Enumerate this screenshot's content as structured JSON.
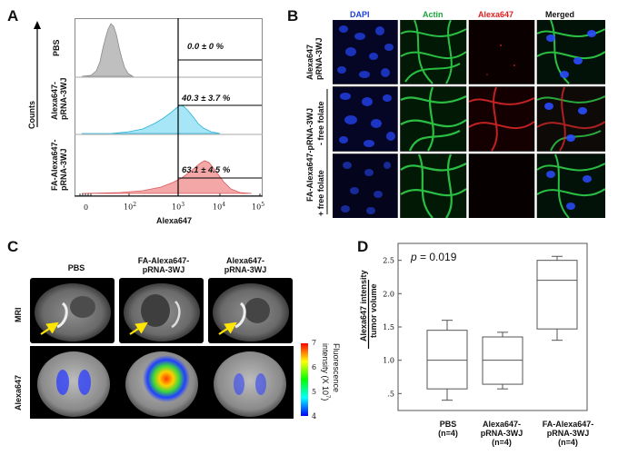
{
  "panel_letters": {
    "a": "A",
    "b": "B",
    "c": "C",
    "d": "D"
  },
  "panel_a": {
    "y_label": "Counts",
    "x_label": "Alexa647",
    "x_ticks": [
      "0",
      "10",
      "10",
      "10",
      "10",
      "10"
    ],
    "x_tick_exps": [
      "",
      "2",
      "3",
      "4",
      "5"
    ],
    "rows": [
      {
        "label_line1": "PBS",
        "label_line2": "",
        "pct": "0.0  ± 0 %",
        "color": "#bfbfbf",
        "stroke": "#8a8a8a"
      },
      {
        "label_line1": "Alexa647-",
        "label_line2": "pRNA-3WJ",
        "pct": "40.3  ± 3.7 %",
        "color": "#a6e6f6",
        "stroke": "#2bb2d6"
      },
      {
        "label_line1": "FA-Alexa647-",
        "label_line2": "pRNA-3WJ",
        "pct": "63.1  ± 4.5 %",
        "color": "#f3a7a7",
        "stroke": "#d9595c"
      }
    ]
  },
  "panel_b": {
    "columns": [
      {
        "label": "DAPI",
        "color": "#1c3fd8"
      },
      {
        "label": "Actin",
        "color": "#19a53a"
      },
      {
        "label": "Alexa647",
        "color": "#e02020"
      },
      {
        "label": "Merged",
        "color": "#111111"
      }
    ],
    "row1_line1": "Alexa647",
    "row1_line2": "pRNA-3WJ",
    "row23_line1": "FA-Alexa647-pRNA-3WJ",
    "row2_note": "- free folate",
    "row3_note": "+ free folate"
  },
  "panel_c": {
    "col_labels": [
      {
        "line1": "PBS",
        "line2": ""
      },
      {
        "line1": "FA-Alexa647-",
        "line2": "pRNA-3WJ"
      },
      {
        "line1": "Alexa647-",
        "line2": "pRNA-3WJ"
      }
    ],
    "row_mri": "MRI",
    "row_fluor": "Alexa647",
    "colorbar_ticks": [
      "7",
      "6",
      "5",
      "4"
    ],
    "colorbar_label_line1": "Fluorescence",
    "colorbar_label_line2": "intensity (X 10",
    "colorbar_label_exp": "7",
    "colorbar_label_end": ")"
  },
  "panel_d": {
    "p_prefix": "p",
    "p_value": " = 0.019",
    "ylabel_line1": "Alexa647 intensity",
    "ylabel_line2": "tumor volume",
    "groups": [
      {
        "line1": "PBS",
        "line2": "(n=4)",
        "line3": ""
      },
      {
        "line1": "Alexa647-",
        "line2": "pRNA-3WJ",
        "line3": "(n=4)"
      },
      {
        "line1": "FA-Alexa647-",
        "line2": "pRNA-3WJ",
        "line3": "(n=4)"
      }
    ]
  },
  "chart_data": {
    "type": "box",
    "categories": [
      "PBS (n=4)",
      "Alexa647-pRNA-3WJ (n=4)",
      "FA-Alexa647-pRNA-3WJ (n=4)"
    ],
    "ylabel": "Alexa647 intensity / tumor volume",
    "y_ticks": [
      ".5",
      "1.0",
      "1.5",
      "2.0",
      "2.5"
    ],
    "ylim": [
      0.3,
      2.7
    ],
    "boxes": [
      {
        "min": 0.4,
        "q1": 0.57,
        "median": 1.0,
        "q3": 1.45,
        "max": 1.6
      },
      {
        "min": 0.57,
        "q1": 0.64,
        "median": 1.0,
        "q3": 1.35,
        "max": 1.42
      },
      {
        "min": 1.3,
        "q1": 1.47,
        "median": 2.2,
        "q3": 2.5,
        "max": 2.56
      }
    ],
    "annotation": "p = 0.019"
  }
}
